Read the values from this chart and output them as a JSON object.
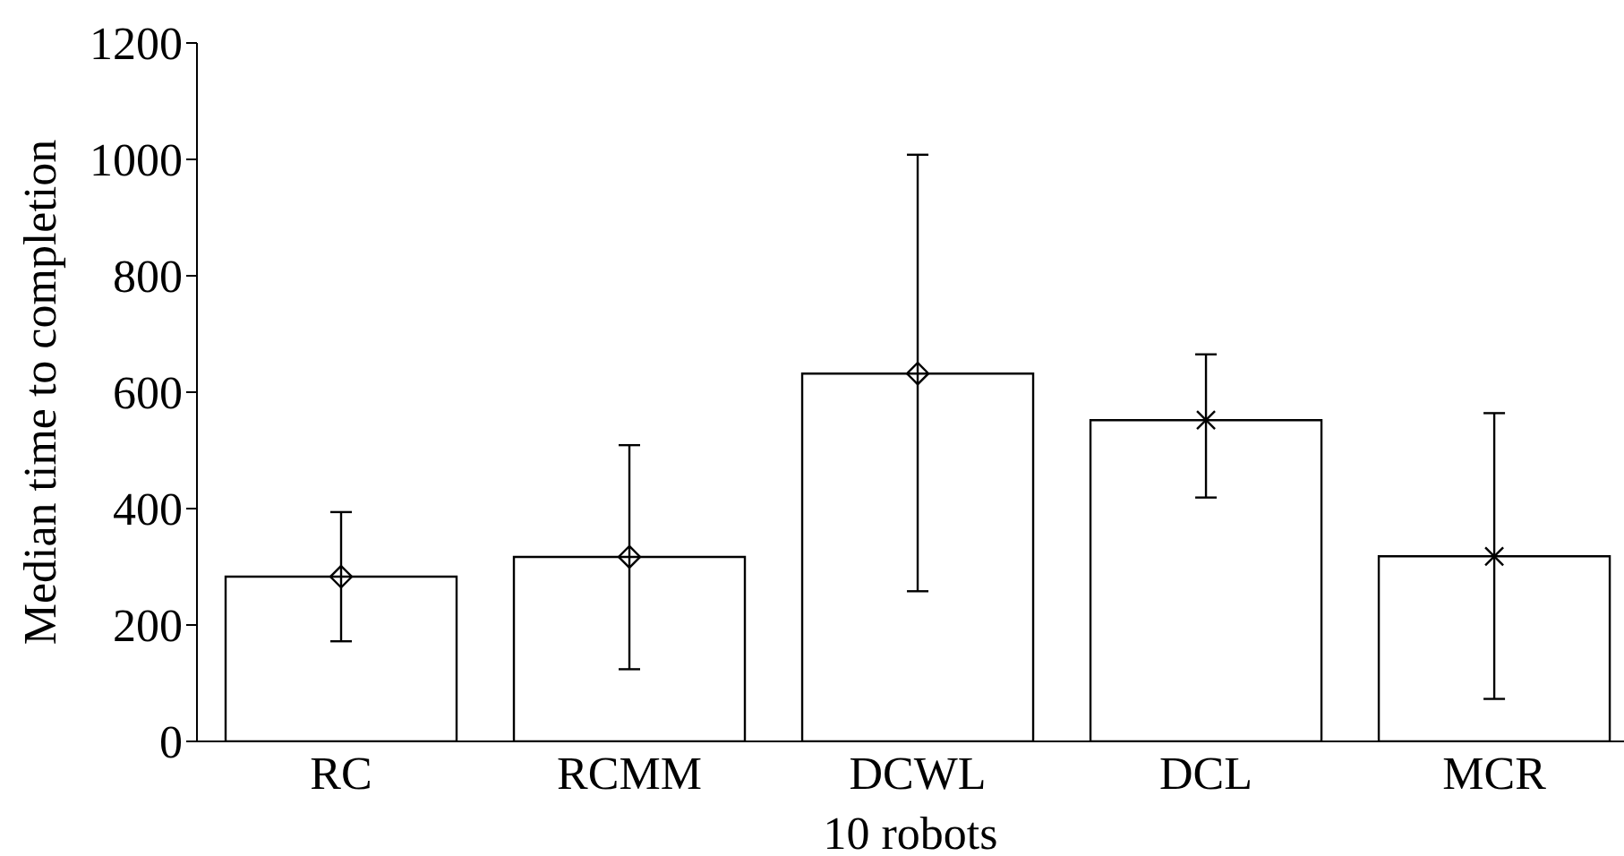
{
  "chart_data": {
    "type": "bar",
    "xlabel": "10 robots",
    "ylabel": "Median time to completion",
    "categories": [
      "RC",
      "RCMM",
      "DCWL",
      "DCL",
      "MCR"
    ],
    "series": [
      {
        "color": "#ffffff",
        "values": [
          283,
          317,
          632,
          552,
          318
        ],
        "errors": [
          [
            172,
            394
          ],
          [
            124,
            509
          ],
          [
            258,
            1008
          ],
          [
            419,
            665
          ],
          [
            73,
            564
          ]
        ]
      },
      {
        "type": "scatter",
        "color": "#000000",
        "marker": "diamond",
        "x": [
          "RC",
          "RCMM",
          "DCWL"
        ],
        "values": [
          283,
          317,
          632
        ]
      },
      {
        "type": "scatter",
        "color": "#000000",
        "marker": "cross",
        "x": [
          "DCL",
          "MCR"
        ],
        "values": [
          552,
          318
        ]
      }
    ],
    "ylim": [
      0,
      1200
    ],
    "yticks": [
      0,
      200,
      400,
      600,
      800,
      1000,
      1200
    ],
    "grid": false,
    "legend": false
  }
}
